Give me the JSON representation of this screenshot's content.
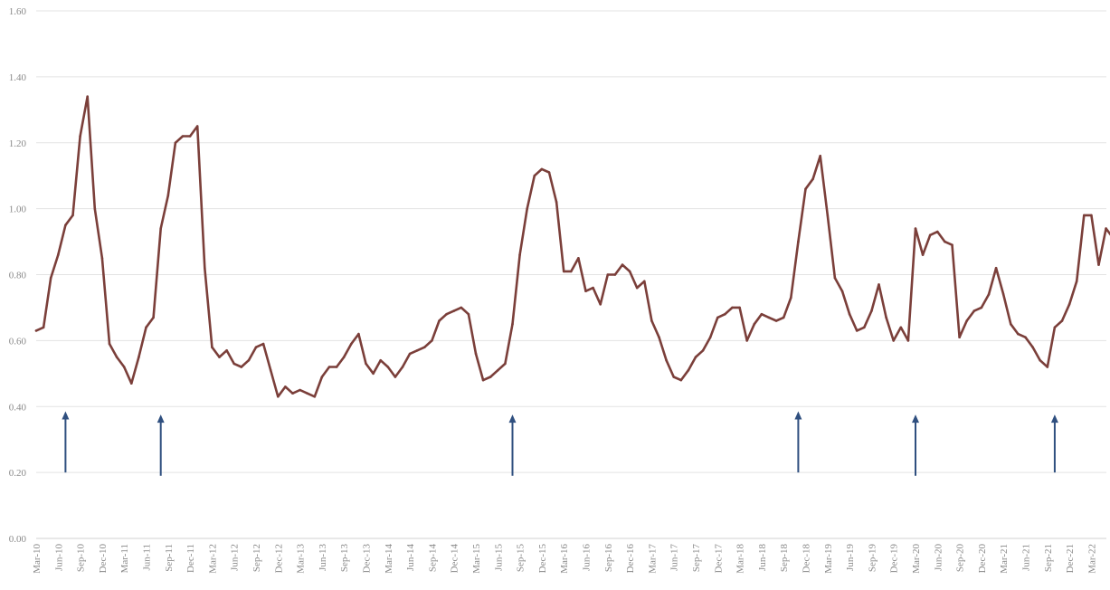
{
  "chart_data": {
    "type": "line",
    "title": "",
    "xlabel": "",
    "ylabel": "",
    "ylim": [
      0,
      1.6
    ],
    "yticks": [
      "0.00",
      "0.20",
      "0.40",
      "0.60",
      "0.80",
      "1.00",
      "1.20",
      "1.40",
      "1.60"
    ],
    "grid": true,
    "legend": "none",
    "start_month": "Mar-10",
    "x_tick_labels": [
      "Mar-10",
      "Jun-10",
      "Sep-10",
      "Dec-10",
      "Mar-11",
      "Jun-11",
      "Sep-11",
      "Dec-11",
      "Mar-12",
      "Jun-12",
      "Sep-12",
      "Dec-12",
      "Mar-13",
      "Jun-13",
      "Sep-13",
      "Dec-13",
      "Mar-14",
      "Jun-14",
      "Sep-14",
      "Dec-14",
      "Mar-15",
      "Jun-15",
      "Sep-15",
      "Dec-15",
      "Mar-16",
      "Jun-16",
      "Sep-16",
      "Dec-16",
      "Mar-17",
      "Jun-17",
      "Sep-17",
      "Dec-17",
      "Mar-18",
      "Jun-18",
      "Sep-18",
      "Dec-18",
      "Mar-19",
      "Jun-19",
      "Sep-19",
      "Dec-19",
      "Mar-20",
      "Jun-20",
      "Sep-20",
      "Dec-20",
      "Mar-21",
      "Jun-21",
      "Sep-21",
      "Dec-21",
      "Mar-22"
    ],
    "series": [
      {
        "color": "#7b3f3a",
        "values": [
          0.63,
          0.64,
          0.79,
          0.86,
          0.95,
          0.98,
          1.22,
          1.34,
          1.0,
          0.85,
          0.59,
          0.55,
          0.52,
          0.47,
          0.55,
          0.64,
          0.67,
          0.94,
          1.04,
          1.2,
          1.22,
          1.22,
          1.25,
          0.82,
          0.58,
          0.55,
          0.57,
          0.53,
          0.52,
          0.54,
          0.58,
          0.59,
          0.51,
          0.43,
          0.46,
          0.44,
          0.45,
          0.44,
          0.43,
          0.49,
          0.52,
          0.52,
          0.55,
          0.59,
          0.62,
          0.53,
          0.5,
          0.54,
          0.52,
          0.49,
          0.52,
          0.56,
          0.57,
          0.58,
          0.6,
          0.66,
          0.68,
          0.69,
          0.7,
          0.68,
          0.56,
          0.48,
          0.49,
          0.51,
          0.53,
          0.65,
          0.86,
          1.0,
          1.1,
          1.12,
          1.11,
          1.02,
          0.81,
          0.81,
          0.85,
          0.75,
          0.76,
          0.71,
          0.8,
          0.8,
          0.83,
          0.81,
          0.76,
          0.78,
          0.66,
          0.61,
          0.54,
          0.49,
          0.48,
          0.51,
          0.55,
          0.57,
          0.61,
          0.67,
          0.68,
          0.7,
          0.7,
          0.6,
          0.65,
          0.68,
          0.67,
          0.66,
          0.67,
          0.73,
          0.9,
          1.06,
          1.09,
          1.16,
          0.98,
          0.79,
          0.75,
          0.68,
          0.63,
          0.64,
          0.69,
          0.77,
          0.67,
          0.6,
          0.64,
          0.6,
          0.94,
          0.86,
          0.92,
          0.93,
          0.9,
          0.89,
          0.61,
          0.66,
          0.69,
          0.7,
          0.74,
          0.82,
          0.74,
          0.65,
          0.62,
          0.61,
          0.58,
          0.54,
          0.52,
          0.64,
          0.66,
          0.71,
          0.78,
          0.98,
          0.98,
          0.83,
          0.94,
          0.91
        ]
      }
    ],
    "annotations": [
      {
        "type": "arrow",
        "month": "Jul-10",
        "from": 0.2,
        "to": 0.38,
        "color": "#2f4f7f"
      },
      {
        "type": "arrow",
        "month": "Aug-11",
        "from": 0.19,
        "to": 0.37,
        "color": "#2f4f7f"
      },
      {
        "type": "arrow",
        "month": "Aug-15",
        "from": 0.19,
        "to": 0.37,
        "color": "#2f4f7f"
      },
      {
        "type": "arrow",
        "month": "Nov-18",
        "from": 0.2,
        "to": 0.38,
        "color": "#2f4f7f"
      },
      {
        "type": "arrow",
        "month": "Mar-20",
        "from": 0.19,
        "to": 0.37,
        "color": "#2f4f7f"
      },
      {
        "type": "arrow",
        "month": "Oct-21",
        "from": 0.2,
        "to": 0.37,
        "color": "#2f4f7f"
      }
    ]
  }
}
